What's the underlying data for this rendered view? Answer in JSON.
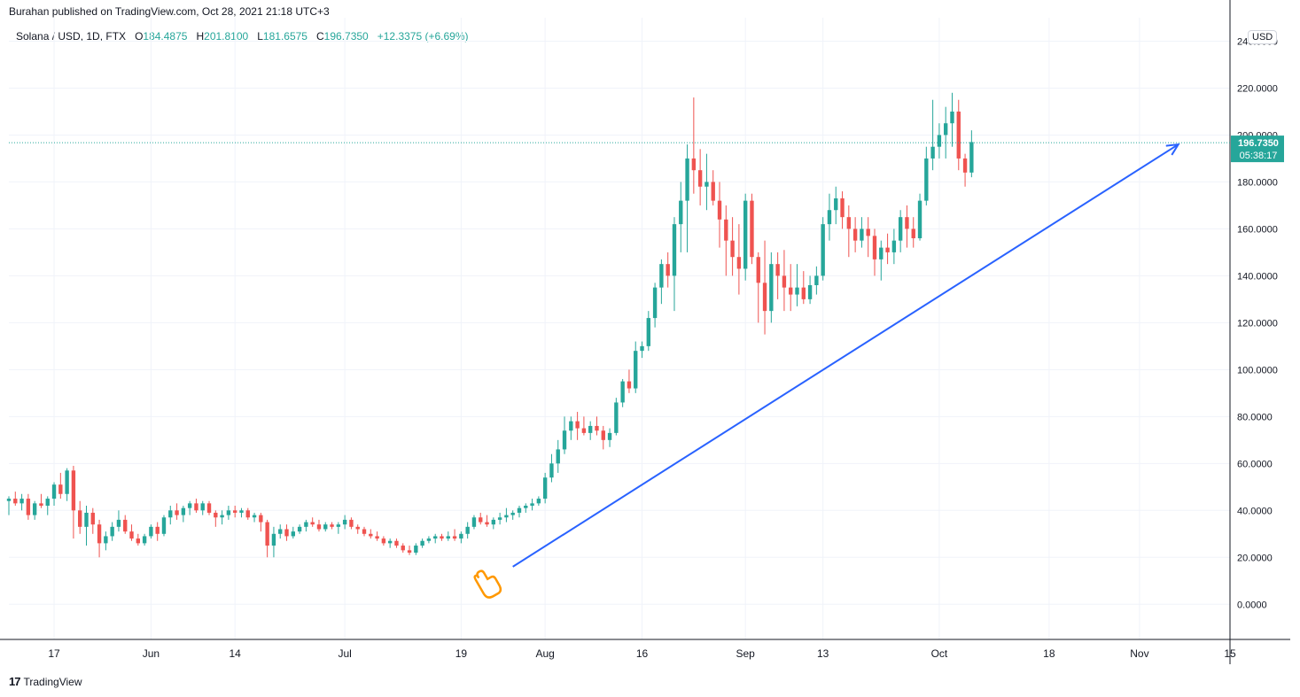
{
  "header": {
    "text": "Burahan published on TradingView.com, Oct 28, 2021 21:18 UTC+3"
  },
  "legend": {
    "symbol": "Solana / USD, 1D, FTX",
    "o_label": "O",
    "o_value": "184.4875",
    "h_label": "H",
    "h_value": "201.8100",
    "l_label": "L",
    "l_value": "181.6575",
    "c_label": "C",
    "c_value": "196.7350",
    "change": "+12.3375 (+6.69%)"
  },
  "currency": "USD",
  "footer": {
    "logo": "17",
    "brand": "TradingView"
  },
  "colors": {
    "up": "#26a69a",
    "down": "#ef5350",
    "trendline": "#2962ff",
    "grid": "#f0f3fa",
    "axis": "#131722",
    "price_tag": "#26a69a"
  },
  "chart_data": {
    "type": "candlestick",
    "ylim": [
      -15,
      250
    ],
    "y_ticks": [
      0,
      20,
      40,
      60,
      80,
      100,
      120,
      140,
      160,
      180,
      200,
      220,
      240
    ],
    "y_tick_labels": [
      "0.0000",
      "20.0000",
      "40.0000",
      "60.0000",
      "80.0000",
      "100.0000",
      "120.0000",
      "140.0000",
      "160.0000",
      "180.0000",
      "200.0000",
      "220.0000",
      "240.0000"
    ],
    "x_ticks": [
      "2021-05-17",
      "2021-06-01",
      "2021-06-14",
      "2021-07-01",
      "2021-07-19",
      "2021-08-01",
      "2021-08-16",
      "2021-09-01",
      "2021-09-13",
      "2021-10-01",
      "2021-10-18",
      "2021-11-01",
      "2021-11-15"
    ],
    "x_tick_labels": [
      "17",
      "Jun",
      "14",
      "Jul",
      "19",
      "Aug",
      "16",
      "Sep",
      "13",
      "Oct",
      "18",
      "Nov",
      "15"
    ],
    "x_range": [
      "2021-05-10",
      "2021-11-15"
    ],
    "last_price": {
      "value": 196.735,
      "label": "196.7350",
      "countdown": "05:38:17"
    },
    "annotations": [
      {
        "type": "trend-arrow",
        "from": [
          "2021-07-27",
          16
        ],
        "to": [
          "2021-11-07",
          196
        ]
      }
    ],
    "ohlc_start": "2021-05-10",
    "ohlc": [
      [
        44,
        46,
        38,
        45
      ],
      [
        45,
        48,
        42,
        43
      ],
      [
        43,
        47,
        40,
        45
      ],
      [
        45,
        47,
        36,
        38
      ],
      [
        38,
        44,
        36,
        43
      ],
      [
        43,
        47,
        41,
        42
      ],
      [
        42,
        46,
        38,
        45
      ],
      [
        45,
        52,
        42,
        51
      ],
      [
        51,
        56,
        45,
        47
      ],
      [
        47,
        58,
        44,
        57
      ],
      [
        57,
        59,
        28,
        40
      ],
      [
        40,
        44,
        30,
        33
      ],
      [
        33,
        42,
        25,
        39
      ],
      [
        39,
        41,
        30,
        34
      ],
      [
        34,
        36,
        20,
        26
      ],
      [
        26,
        31,
        23,
        29
      ],
      [
        29,
        35,
        27,
        33
      ],
      [
        33,
        40,
        31,
        36
      ],
      [
        36,
        38,
        30,
        31
      ],
      [
        31,
        34,
        27,
        28
      ],
      [
        28,
        30,
        25,
        26
      ],
      [
        26,
        30,
        25,
        29
      ],
      [
        29,
        34,
        28,
        33
      ],
      [
        33,
        35,
        27,
        30
      ],
      [
        30,
        38,
        29,
        37
      ],
      [
        37,
        42,
        34,
        40
      ],
      [
        40,
        43,
        36,
        38
      ],
      [
        38,
        42,
        35,
        41
      ],
      [
        41,
        44,
        38,
        43
      ],
      [
        43,
        45,
        39,
        40
      ],
      [
        40,
        44,
        38,
        43
      ],
      [
        43,
        44,
        38,
        39
      ],
      [
        39,
        40,
        33,
        37
      ],
      [
        37,
        40,
        34,
        38
      ],
      [
        38,
        42,
        36,
        40
      ],
      [
        40,
        42,
        37,
        39
      ],
      [
        39,
        41,
        37,
        40
      ],
      [
        40,
        41,
        36,
        37
      ],
      [
        37,
        39,
        35,
        38
      ],
      [
        38,
        39,
        31,
        35
      ],
      [
        35,
        36,
        20,
        25
      ],
      [
        25,
        33,
        20,
        30
      ],
      [
        30,
        34,
        28,
        32
      ],
      [
        32,
        34,
        27,
        29
      ],
      [
        29,
        33,
        28,
        31
      ],
      [
        31,
        34,
        30,
        33
      ],
      [
        33,
        36,
        31,
        35
      ],
      [
        35,
        37,
        33,
        34
      ],
      [
        34,
        36,
        31,
        32
      ],
      [
        32,
        35,
        31,
        34
      ],
      [
        34,
        35,
        32,
        33
      ],
      [
        33,
        35,
        30,
        34
      ],
      [
        34,
        38,
        32,
        36
      ],
      [
        36,
        37,
        32,
        33
      ],
      [
        33,
        34,
        30,
        32
      ],
      [
        32,
        33,
        29,
        30
      ],
      [
        30,
        32,
        28,
        29
      ],
      [
        29,
        31,
        27,
        28
      ],
      [
        28,
        29,
        25,
        26
      ],
      [
        26,
        28,
        24,
        27
      ],
      [
        27,
        28,
        24,
        25
      ],
      [
        25,
        26,
        22,
        23
      ],
      [
        23,
        25,
        21,
        22
      ],
      [
        22,
        26,
        21,
        25
      ],
      [
        25,
        28,
        24,
        27
      ],
      [
        27,
        29,
        26,
        28
      ],
      [
        28,
        30,
        26,
        29
      ],
      [
        29,
        30,
        27,
        28
      ],
      [
        28,
        31,
        27,
        29
      ],
      [
        29,
        32,
        27,
        28
      ],
      [
        28,
        31,
        26,
        30
      ],
      [
        30,
        35,
        28,
        33
      ],
      [
        33,
        38,
        32,
        37
      ],
      [
        37,
        39,
        34,
        35
      ],
      [
        35,
        38,
        33,
        34
      ],
      [
        34,
        37,
        32,
        36
      ],
      [
        36,
        39,
        34,
        37
      ],
      [
        37,
        41,
        35,
        38
      ],
      [
        38,
        40,
        36,
        39
      ],
      [
        39,
        42,
        37,
        41
      ],
      [
        41,
        43,
        39,
        42
      ],
      [
        42,
        45,
        40,
        43
      ],
      [
        43,
        46,
        42,
        45
      ],
      [
        45,
        56,
        43,
        54
      ],
      [
        54,
        64,
        52,
        60
      ],
      [
        60,
        70,
        56,
        66
      ],
      [
        66,
        80,
        64,
        74
      ],
      [
        74,
        80,
        70,
        78
      ],
      [
        78,
        82,
        70,
        75
      ],
      [
        75,
        80,
        72,
        73
      ],
      [
        73,
        78,
        70,
        76
      ],
      [
        76,
        80,
        72,
        74
      ],
      [
        74,
        76,
        66,
        70
      ],
      [
        70,
        75,
        67,
        73
      ],
      [
        73,
        88,
        72,
        86
      ],
      [
        86,
        96,
        84,
        95
      ],
      [
        95,
        100,
        90,
        92
      ],
      [
        92,
        112,
        90,
        108
      ],
      [
        108,
        112,
        105,
        110
      ],
      [
        110,
        125,
        108,
        122
      ],
      [
        122,
        137,
        118,
        135
      ],
      [
        135,
        147,
        128,
        145
      ],
      [
        145,
        150,
        135,
        140
      ],
      [
        140,
        165,
        125,
        162
      ],
      [
        162,
        180,
        150,
        172
      ],
      [
        172,
        196,
        150,
        190
      ],
      [
        190,
        216,
        175,
        185
      ],
      [
        185,
        194,
        170,
        178
      ],
      [
        178,
        192,
        168,
        180
      ],
      [
        180,
        185,
        170,
        172
      ],
      [
        172,
        180,
        152,
        164
      ],
      [
        164,
        170,
        140,
        155
      ],
      [
        155,
        165,
        140,
        148
      ],
      [
        148,
        162,
        132,
        143
      ],
      [
        143,
        175,
        138,
        172
      ],
      [
        172,
        175,
        145,
        148
      ],
      [
        148,
        150,
        120,
        137
      ],
      [
        137,
        155,
        115,
        125
      ],
      [
        125,
        150,
        120,
        145
      ],
      [
        145,
        150,
        130,
        140
      ],
      [
        140,
        151,
        125,
        135
      ],
      [
        135,
        145,
        125,
        132
      ],
      [
        132,
        145,
        127,
        135
      ],
      [
        135,
        142,
        128,
        130
      ],
      [
        130,
        140,
        128,
        136
      ],
      [
        136,
        144,
        132,
        140
      ],
      [
        140,
        165,
        138,
        162
      ],
      [
        162,
        175,
        155,
        168
      ],
      [
        168,
        178,
        162,
        173
      ],
      [
        173,
        176,
        160,
        165
      ],
      [
        165,
        170,
        148,
        160
      ],
      [
        160,
        165,
        150,
        155
      ],
      [
        155,
        165,
        152,
        160
      ],
      [
        160,
        165,
        148,
        157
      ],
      [
        157,
        160,
        140,
        147
      ],
      [
        147,
        155,
        138,
        152
      ],
      [
        152,
        158,
        145,
        150
      ],
      [
        150,
        160,
        145,
        155
      ],
      [
        155,
        168,
        150,
        165
      ],
      [
        165,
        170,
        152,
        160
      ],
      [
        160,
        165,
        152,
        156
      ],
      [
        156,
        175,
        155,
        172
      ],
      [
        172,
        195,
        170,
        190
      ],
      [
        190,
        215,
        185,
        195
      ],
      [
        195,
        205,
        190,
        200
      ],
      [
        200,
        212,
        190,
        205
      ],
      [
        205,
        218,
        195,
        210
      ],
      [
        210,
        215,
        185,
        190
      ],
      [
        190,
        192,
        178,
        184
      ],
      [
        184,
        202,
        182,
        197
      ]
    ]
  }
}
